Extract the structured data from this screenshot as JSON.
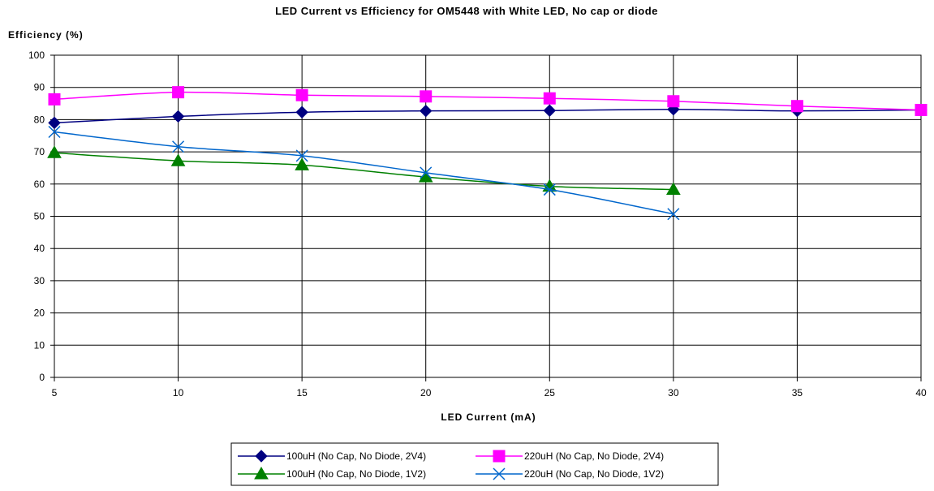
{
  "chart_data": {
    "type": "line",
    "title": "LED Current vs Efficiency for OM5448 with White LED, No cap or diode",
    "xlabel": "LED Current (mA)",
    "ylabel": "Efficiency (%)",
    "xlim": [
      5,
      40
    ],
    "ylim": [
      0,
      100
    ],
    "x_ticks": [
      "5",
      "10",
      "15",
      "20",
      "25",
      "30",
      "35",
      "40"
    ],
    "y_ticks": [
      "0",
      "10",
      "20",
      "30",
      "40",
      "50",
      "60",
      "70",
      "80",
      "90",
      "100"
    ],
    "grid": true,
    "legend_position": "bottom",
    "series": [
      {
        "name": "100uH (No Cap, No Diode, 2V4)",
        "color": "#000080",
        "marker": "diamond",
        "x": [
          5,
          10,
          15,
          20,
          25,
          30,
          35,
          40
        ],
        "y": [
          79,
          81,
          82.3,
          82.7,
          82.8,
          83.2,
          82.7,
          83
        ]
      },
      {
        "name": "220uH (No Cap, No Diode, 2V4)",
        "color": "#ff00ff",
        "marker": "square",
        "x": [
          5,
          10,
          15,
          20,
          25,
          30,
          35,
          40
        ],
        "y": [
          86.3,
          88.5,
          87.6,
          87.2,
          86.6,
          85.7,
          84.2,
          83
        ]
      },
      {
        "name": "100uH (No Cap, No Diode, 1V2)",
        "color": "#008000",
        "marker": "triangle",
        "x": [
          5,
          10,
          15,
          20,
          25,
          30
        ],
        "y": [
          69.7,
          67.2,
          65.9,
          62.2,
          59.3,
          58.3
        ]
      },
      {
        "name": "220uH (No Cap, No Diode, 1V2)",
        "color": "#0066cc",
        "marker": "x",
        "x": [
          5,
          10,
          15,
          20,
          25,
          30
        ],
        "y": [
          76.2,
          71.6,
          68.8,
          63.5,
          58.3,
          50.7
        ]
      }
    ]
  }
}
